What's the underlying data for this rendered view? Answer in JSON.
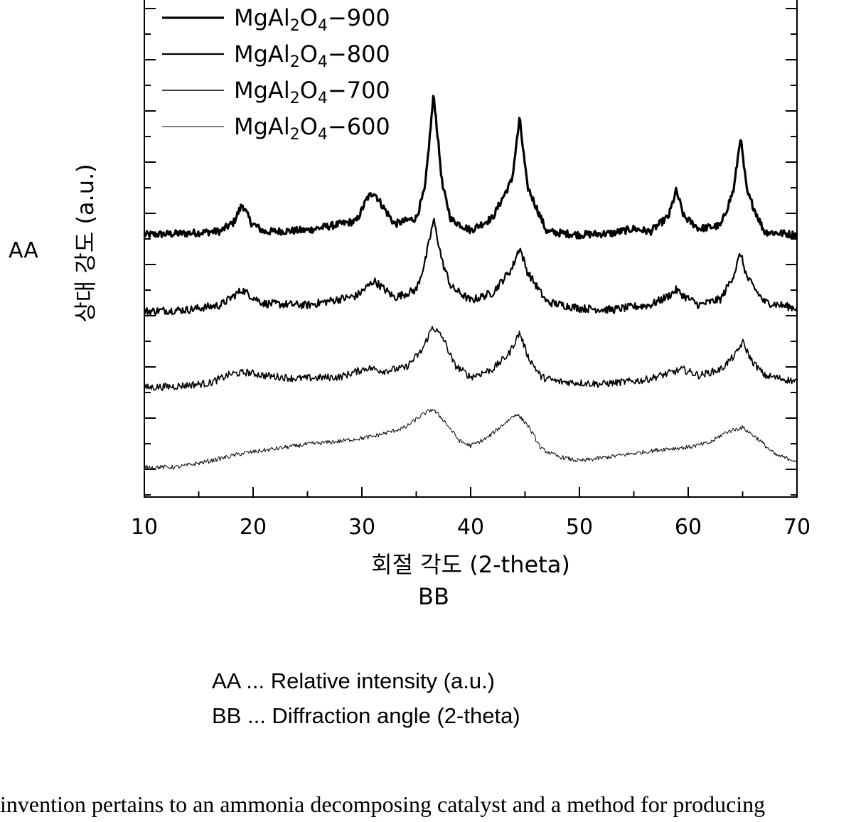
{
  "chart_data": {
    "type": "line",
    "title": "",
    "xlabel": "회절 각도 (2-theta)",
    "ylabel": "상대 강도 (a.u.)",
    "xlim": [
      10,
      70
    ],
    "x_ticks": [
      "10",
      "20",
      "30",
      "40",
      "50",
      "60",
      "70"
    ],
    "y_tick_labels": "none",
    "grid": false,
    "legend_position": "top-left",
    "legend": [
      {
        "base": "MgAl",
        "sub1": "2",
        "mid": "O",
        "sub2": "4",
        "suffix": "−900"
      },
      {
        "base": "MgAl",
        "sub1": "2",
        "mid": "O",
        "sub2": "4",
        "suffix": "−800"
      },
      {
        "base": "MgAl",
        "sub1": "2",
        "mid": "O",
        "sub2": "4",
        "suffix": "−700"
      },
      {
        "base": "MgAl",
        "sub1": "2",
        "mid": "O",
        "sub2": "4",
        "suffix": "−600"
      }
    ],
    "series": [
      {
        "name": "MgAl2O4-900",
        "offset": 7.6,
        "noise": 0.12,
        "x": [
          10,
          14,
          17,
          18.2,
          19,
          19.8,
          21,
          25,
          29.5,
          30.5,
          31.1,
          31.8,
          33,
          35,
          35.8,
          36.6,
          37.4,
          38.2,
          40,
          42,
          43.8,
          44.5,
          45.2,
          47,
          50,
          53,
          55,
          56.5,
          58.2,
          58.9,
          59.6,
          61,
          63,
          64.2,
          64.8,
          65.4,
          67,
          70
        ],
        "y": [
          0,
          0.05,
          0.12,
          0.4,
          1.0,
          0.4,
          0.1,
          0.15,
          0.45,
          1.2,
          1.4,
          1.0,
          0.35,
          0.55,
          1.5,
          4.6,
          1.6,
          0.5,
          0.15,
          0.55,
          1.8,
          3.8,
          1.6,
          0.1,
          0.0,
          0.05,
          0.2,
          0.1,
          0.6,
          1.45,
          0.6,
          0.2,
          0.3,
          1.5,
          3.2,
          1.4,
          0.1,
          0.0
        ]
      },
      {
        "name": "MgAl2O4-800",
        "offset": 5.1,
        "noise": 0.13,
        "x": [
          10,
          14,
          17,
          18.2,
          19,
          19.8,
          21,
          25,
          29.5,
          30.5,
          31.1,
          31.8,
          33,
          35,
          35.8,
          36.6,
          37.4,
          38.2,
          40,
          42,
          43.8,
          44.5,
          45.2,
          47,
          50,
          53,
          55,
          56.5,
          58.2,
          58.9,
          59.6,
          61,
          63,
          64.2,
          64.8,
          65.4,
          67,
          70
        ],
        "y": [
          0,
          0.05,
          0.2,
          0.5,
          0.7,
          0.5,
          0.25,
          0.2,
          0.5,
          0.8,
          1.0,
          0.8,
          0.45,
          0.7,
          1.6,
          3.0,
          1.6,
          0.8,
          0.35,
          0.6,
          1.4,
          2.1,
          1.3,
          0.3,
          0.1,
          0.05,
          0.15,
          0.2,
          0.5,
          0.7,
          0.5,
          0.2,
          0.4,
          1.2,
          1.9,
          1.1,
          0.3,
          0.1
        ]
      },
      {
        "name": "MgAl2O4-700",
        "offset": 2.6,
        "noise": 0.12,
        "x": [
          10,
          13,
          16,
          18,
          19.5,
          21,
          24,
          28,
          30.5,
          32,
          34,
          35.5,
          36.5,
          37.5,
          38.5,
          40,
          42,
          43.5,
          44.5,
          45.3,
          46.5,
          48,
          52,
          56,
          58,
          59.5,
          61,
          63,
          64.4,
          65,
          65.8,
          67,
          70
        ],
        "y": [
          0,
          0.05,
          0.15,
          0.45,
          0.5,
          0.4,
          0.3,
          0.35,
          0.65,
          0.55,
          0.65,
          1.2,
          2.0,
          1.6,
          0.75,
          0.35,
          0.6,
          1.1,
          1.8,
          1.0,
          0.35,
          0.2,
          0.12,
          0.25,
          0.45,
          0.6,
          0.4,
          0.6,
          1.1,
          1.5,
          0.9,
          0.4,
          0.2
        ]
      },
      {
        "name": "MgAl2O4-600",
        "offset": 0.0,
        "noise": 0.07,
        "x": [
          10,
          13,
          16,
          19,
          22,
          25,
          28,
          31,
          34,
          35.5,
          36.5,
          37.5,
          39,
          40,
          41.5,
          43,
          44.2,
          45.2,
          46.5,
          48,
          50,
          52,
          55,
          58,
          60,
          62,
          63.5,
          65,
          66.5,
          68,
          70
        ],
        "y": [
          0,
          0.0,
          0.2,
          0.45,
          0.6,
          0.75,
          0.85,
          1.0,
          1.3,
          1.7,
          1.9,
          1.55,
          0.85,
          0.7,
          0.95,
          1.4,
          1.75,
          1.4,
          0.6,
          0.35,
          0.2,
          0.3,
          0.45,
          0.6,
          0.65,
          0.8,
          1.15,
          1.3,
          0.9,
          0.4,
          0.2
        ]
      }
    ]
  },
  "side_tag": "AA",
  "xlabel_tag": "BB",
  "notes": {
    "line1": "AA ... Relative intensity (a.u.)",
    "line2": "BB ... Diffraction angle (2-theta)"
  },
  "caption": "invention pertains to an ammonia decomposing catalyst and a method for producing"
}
